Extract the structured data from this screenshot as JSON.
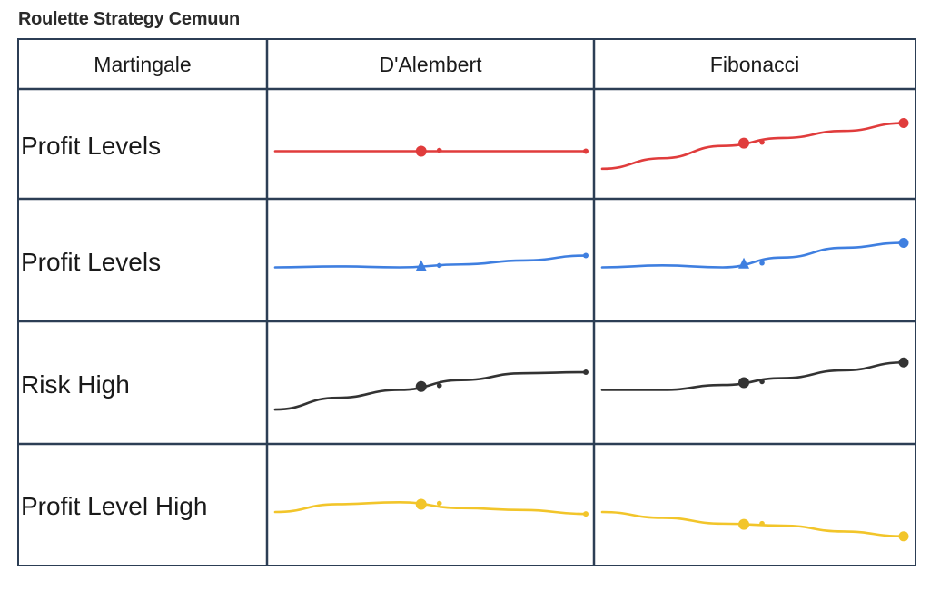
{
  "title": "Roulette Strategy Cemuun",
  "columns": [
    "Martingale",
    "D'Alembert",
    "Fibonacci"
  ],
  "rows": [
    {
      "label": "Profit Levels",
      "color": "#e03c3c"
    },
    {
      "label": "Profit Levels",
      "color": "#3f7fe0"
    },
    {
      "label": "Risk High",
      "color": "#333333"
    },
    {
      "label": "Profit Level High",
      "color": "#f2c52a"
    }
  ],
  "chart_data": {
    "type": "line",
    "x": [
      0,
      0.2,
      0.4,
      0.6,
      0.8,
      1.0
    ],
    "series": [
      {
        "name": "Profit Levels",
        "color": "#e03c3c",
        "marker": "circle",
        "dalembert": [
          0.5,
          0.5,
          0.5,
          0.5,
          0.5,
          0.5
        ],
        "fibonacci": [
          0.3,
          0.42,
          0.56,
          0.65,
          0.73,
          0.82
        ]
      },
      {
        "name": "Profit Levels",
        "color": "#3f7fe0",
        "marker": "triangle",
        "dalembert": [
          0.5,
          0.51,
          0.5,
          0.53,
          0.57,
          0.62
        ],
        "fibonacci": [
          0.5,
          0.52,
          0.5,
          0.6,
          0.7,
          0.75
        ]
      },
      {
        "name": "Risk High",
        "color": "#333333",
        "marker": "circle",
        "dalembert": [
          0.3,
          0.42,
          0.5,
          0.6,
          0.67,
          0.68
        ],
        "fibonacci": [
          0.5,
          0.5,
          0.55,
          0.62,
          0.7,
          0.78
        ]
      },
      {
        "name": "Profit Level High",
        "color": "#f2c52a",
        "marker": "circle",
        "dalembert": [
          0.5,
          0.58,
          0.6,
          0.54,
          0.52,
          0.48
        ],
        "fibonacci": [
          0.5,
          0.44,
          0.38,
          0.36,
          0.3,
          0.25
        ]
      }
    ]
  }
}
